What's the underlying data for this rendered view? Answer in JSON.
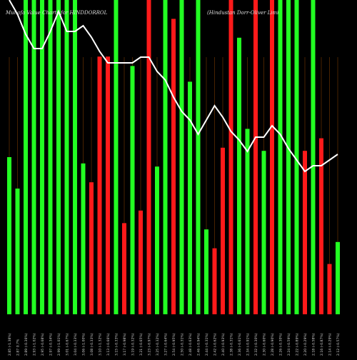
{
  "chart_data": {
    "type": "bar",
    "title": "Munafa Value Charts for HINDDORROL",
    "subtitle": "(Hindustan Dorr-Oliver Limi",
    "colors": {
      "up": "#22ff22",
      "down": "#ff1a1a",
      "line": "#ffffff",
      "guide": "#7a3a00",
      "background": "#000000"
    },
    "ylim": [
      0,
      100
    ],
    "bars": [
      {
        "dir": "up",
        "value": 50
      },
      {
        "dir": "up",
        "value": 40
      },
      {
        "dir": "up",
        "value": 100
      },
      {
        "dir": "up",
        "value": 100
      },
      {
        "dir": "up",
        "value": 100
      },
      {
        "dir": "up",
        "value": 100
      },
      {
        "dir": "up",
        "value": 100
      },
      {
        "dir": "up",
        "value": 100
      },
      {
        "dir": "up",
        "value": 100
      },
      {
        "dir": "up",
        "value": 48
      },
      {
        "dir": "down",
        "value": 42
      },
      {
        "dir": "down",
        "value": 82
      },
      {
        "dir": "down",
        "value": 82
      },
      {
        "dir": "up",
        "value": 100
      },
      {
        "dir": "down",
        "value": 29
      },
      {
        "dir": "up",
        "value": 79
      },
      {
        "dir": "down",
        "value": 33
      },
      {
        "dir": "down",
        "value": 100
      },
      {
        "dir": "up",
        "value": 47
      },
      {
        "dir": "up",
        "value": 100
      },
      {
        "dir": "down",
        "value": 94
      },
      {
        "dir": "up",
        "value": 100
      },
      {
        "dir": "up",
        "value": 74
      },
      {
        "dir": "up",
        "value": 100
      },
      {
        "dir": "up",
        "value": 27
      },
      {
        "dir": "down",
        "value": 21
      },
      {
        "dir": "down",
        "value": 53
      },
      {
        "dir": "down",
        "value": 100
      },
      {
        "dir": "up",
        "value": 88
      },
      {
        "dir": "up",
        "value": 59
      },
      {
        "dir": "down",
        "value": 100
      },
      {
        "dir": "up",
        "value": 52
      },
      {
        "dir": "down",
        "value": 100
      },
      {
        "dir": "up",
        "value": 100
      },
      {
        "dir": "up",
        "value": 100
      },
      {
        "dir": "up",
        "value": 100
      },
      {
        "dir": "down",
        "value": 52
      },
      {
        "dir": "up",
        "value": 100
      },
      {
        "dir": "down",
        "value": 56
      },
      {
        "dir": "down",
        "value": 16
      },
      {
        "dir": "up",
        "value": 23
      }
    ],
    "line": [
      110,
      105,
      98,
      93,
      93,
      99,
      106,
      99,
      99,
      101,
      97,
      92,
      88,
      88,
      88,
      88,
      90,
      90,
      85,
      82,
      76,
      71,
      68,
      63,
      68,
      73,
      69,
      64,
      61,
      57,
      62,
      62,
      66,
      63,
      58,
      54,
      50,
      52,
      52,
      54,
      56
    ],
    "line_range": [
      0,
      110
    ],
    "xtick_labels": [
      "2.85 (-1.38%)",
      "2.87 0.7%",
      "2.89 (-0.36%)",
      "2.93 (-1.02%)",
      "2.95 (-0.68%)",
      "2.97 (-0.34%)",
      "2.99 (-1.01%)",
      "3.01 (-0.67%)",
      "3.04 (-0.33%)",
      "3.06 (-1.00%)",
      "3.08 (-0.33%)",
      "3.10 (-1.32%)",
      "3.13 (-0.66%)",
      "3.15 (-0.33%)",
      "3.17 (-0.98%)",
      "3.19 (-0.32%)",
      "3.21 (-0.65%)",
      "3.23 (-0.97%)",
      "3.25 (-0.32%)",
      "3.27 (-0.64%)",
      "2.54 (-0.95%)",
      "2.50 (-0.31%)",
      "2.48 (-0.63%)",
      "2.46 (-0.94%)",
      "2.44 (-0.31%)",
      "2.42 (-0.62%)",
      "2.40 (-0.93%)",
      "2.38 (-0.31%)",
      "2.36 (-0.61%)",
      "2.34 (-0.91%)",
      "2.32 (-0.30%)",
      "2.30 (-0.60%)",
      "2.28 (-0.90%)",
      "2.26 (-0.30%)",
      "2.24 (-0.59%)",
      "2.22 (-0.89%)",
      "2.20 (-0.29%)",
      "2.18 (-0.58%)",
      "2.16 (-0.87%)",
      "2.14 (-0.29%)",
      "2.12 (-0.57%)"
    ]
  }
}
